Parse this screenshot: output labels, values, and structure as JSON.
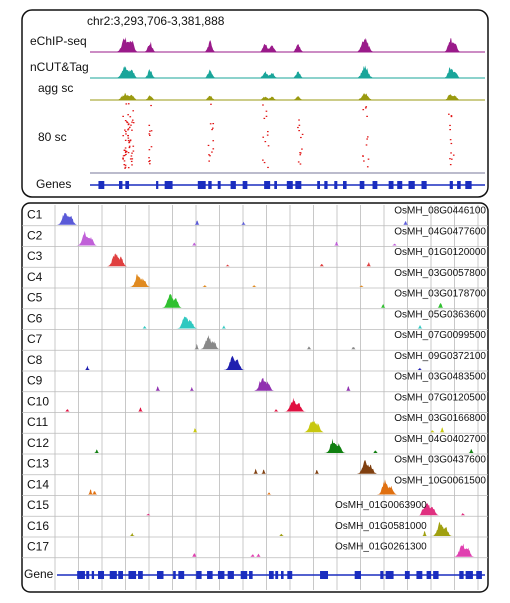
{
  "top": {
    "locus": "chr2:3,293,706-3,381,888",
    "tracks": [
      "eChIP-seq",
      "nCUT&Tag",
      "agg sc",
      "80 sc",
      "Genes"
    ]
  },
  "bottom": {
    "rows": [
      {
        "label": "C1",
        "gene": "OsMH_08G0446100"
      },
      {
        "label": "C2",
        "gene": "OsMH_04G0477600"
      },
      {
        "label": "C3",
        "gene": "OsMH_01G0120000"
      },
      {
        "label": "C4",
        "gene": "OsMH_03G0057800"
      },
      {
        "label": "C5",
        "gene": "OsMH_03G0178700"
      },
      {
        "label": "C6",
        "gene": "OsMH_05G0363600"
      },
      {
        "label": "C7",
        "gene": "OsMH_07G0099500"
      },
      {
        "label": "C8",
        "gene": "OsMH_09G0372100"
      },
      {
        "label": "C9",
        "gene": "OsMH_03G0483500"
      },
      {
        "label": "C10",
        "gene": "OsMH_07G0120500"
      },
      {
        "label": "C11",
        "gene": "OsMH_03G0166800"
      },
      {
        "label": "C12",
        "gene": "OsMH_04G0402700"
      },
      {
        "label": "C13",
        "gene": "OsMH_03G0437600"
      },
      {
        "label": "C14",
        "gene": "OsMH_10G0061500"
      },
      {
        "label": "C15",
        "gene": "OsMH_01G0063900"
      },
      {
        "label": "C16",
        "gene": "OsMH_01G0581000"
      },
      {
        "label": "C17",
        "gene": "OsMH_01G0261300"
      }
    ],
    "gene_label": "Gene"
  }
}
